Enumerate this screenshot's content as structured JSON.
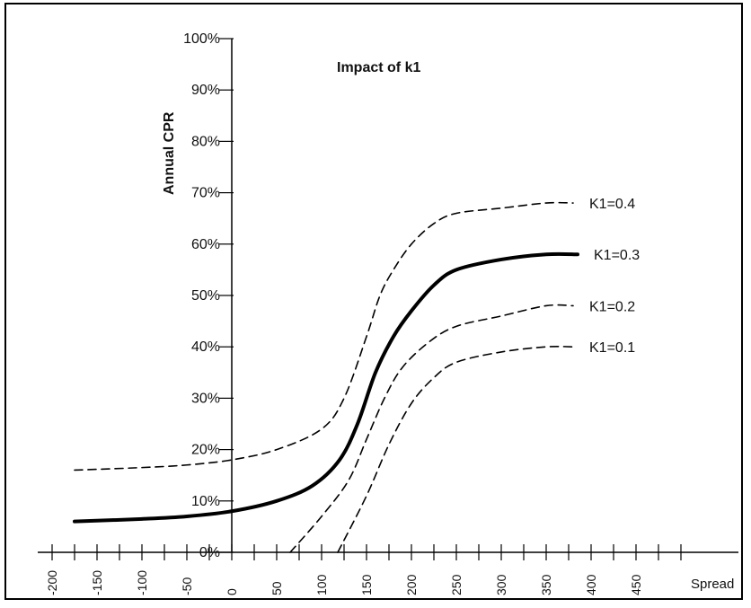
{
  "chart_data": {
    "type": "line",
    "title": "Impact of k1",
    "xlabel": "Spread",
    "ylabel": "Annual CPR",
    "xlim": [
      -200,
      500
    ],
    "ylim": [
      0,
      100
    ],
    "x_ticks": [
      -200,
      -150,
      -100,
      -50,
      0,
      50,
      100,
      150,
      200,
      250,
      300,
      350,
      400,
      450
    ],
    "y_ticks": [
      0,
      10,
      20,
      30,
      40,
      50,
      60,
      70,
      80,
      90,
      100
    ],
    "y_tick_labels": [
      "0%",
      "10%",
      "20%",
      "30%",
      "40%",
      "50%",
      "60%",
      "70%",
      "80%",
      "90%",
      "100%"
    ],
    "grid": false,
    "legend": "inline labels at right end of each curve",
    "series": [
      {
        "name": "K1=0.4",
        "style": "dashed",
        "points": [
          [
            -175,
            16
          ],
          [
            -100,
            16.5
          ],
          [
            -50,
            17
          ],
          [
            0,
            18
          ],
          [
            50,
            20
          ],
          [
            100,
            24
          ],
          [
            125,
            30
          ],
          [
            150,
            42
          ],
          [
            165,
            50
          ],
          [
            180,
            55
          ],
          [
            200,
            60
          ],
          [
            225,
            64
          ],
          [
            250,
            66
          ],
          [
            300,
            67
          ],
          [
            350,
            68
          ],
          [
            380,
            68
          ]
        ]
      },
      {
        "name": "K1=0.3",
        "style": "solid",
        "points": [
          [
            -175,
            6
          ],
          [
            -100,
            6.5
          ],
          [
            -50,
            7
          ],
          [
            0,
            8
          ],
          [
            50,
            10
          ],
          [
            90,
            13
          ],
          [
            120,
            18
          ],
          [
            140,
            25
          ],
          [
            160,
            35
          ],
          [
            180,
            42
          ],
          [
            200,
            47
          ],
          [
            225,
            52
          ],
          [
            250,
            55
          ],
          [
            300,
            57
          ],
          [
            350,
            58
          ],
          [
            385,
            58
          ]
        ]
      },
      {
        "name": "K1=0.2",
        "style": "dashed",
        "points": [
          [
            65,
            0
          ],
          [
            100,
            7
          ],
          [
            130,
            14
          ],
          [
            150,
            22
          ],
          [
            170,
            30
          ],
          [
            190,
            36
          ],
          [
            220,
            41
          ],
          [
            250,
            44
          ],
          [
            300,
            46
          ],
          [
            350,
            48
          ],
          [
            380,
            48
          ]
        ]
      },
      {
        "name": "K1=0.1",
        "style": "dashed",
        "points": [
          [
            118,
            0
          ],
          [
            150,
            11
          ],
          [
            175,
            21
          ],
          [
            200,
            29
          ],
          [
            225,
            34
          ],
          [
            250,
            37
          ],
          [
            300,
            39
          ],
          [
            350,
            40
          ],
          [
            380,
            40
          ]
        ]
      }
    ]
  }
}
